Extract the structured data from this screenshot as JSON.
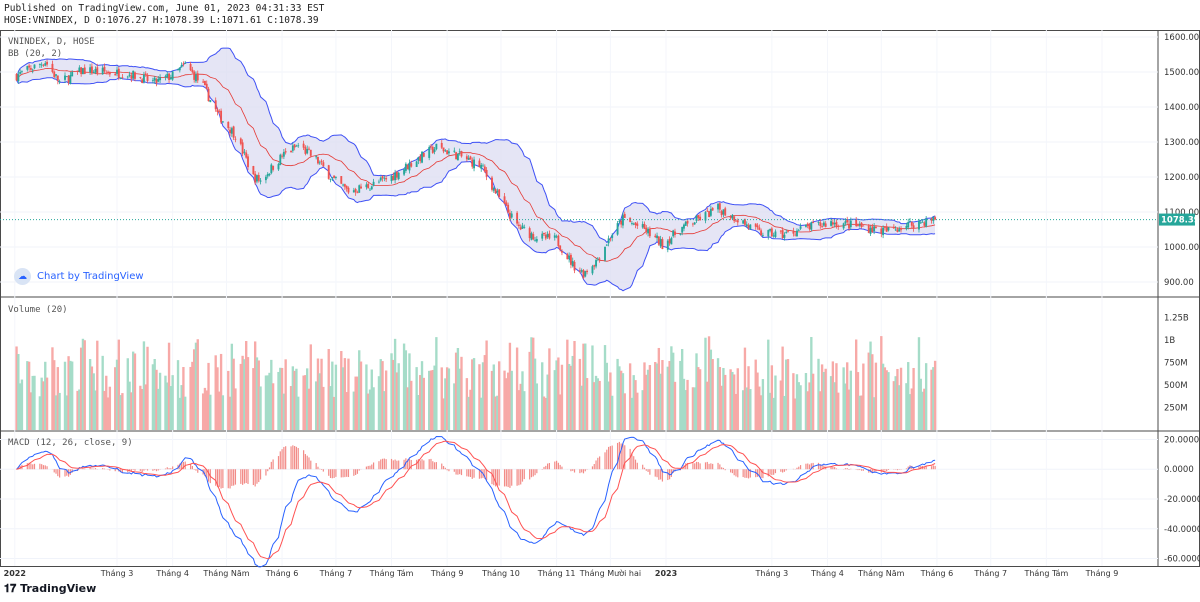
{
  "header": {
    "published": "Published on TradingView.com, June 01, 2023 04:31:33 EST",
    "ohlc": "HOSE:VNINDEX, D O:1076.27 H:1078.39 L:1071.61 C:1078.39"
  },
  "price_pane": {
    "symbol_label": "VNINDEX, D, HOSE",
    "indicator_label": "BB (20, 2)",
    "last_price": "1078.39",
    "y_ticks": [
      "1600.00",
      "1500.00",
      "1400.00",
      "1300.00",
      "1200.00",
      "1100.00",
      "1000.00",
      "900.00"
    ]
  },
  "volume_pane": {
    "label": "Volume (20)",
    "y_ticks": [
      "1.25B",
      "1B",
      "750M",
      "500M",
      "250M"
    ]
  },
  "macd_pane": {
    "label": "MACD (12, 26, close, 9)",
    "y_ticks": [
      "20.0000",
      "0.0000",
      "-20.0000",
      "-40.0000",
      "-60.0000"
    ]
  },
  "x_axis": [
    "2022",
    "Tháng 3",
    "Tháng 4",
    "Tháng Năm",
    "Tháng 6",
    "Tháng 7",
    "Tháng Tám",
    "Tháng 9",
    "Tháng 10",
    "Tháng 11",
    "Tháng Mười hai",
    "2023",
    "Tháng 3",
    "Tháng 4",
    "Tháng Năm",
    "Tháng 6",
    "Tháng 7",
    "Tháng Tám",
    "Tháng 9"
  ],
  "watermark": "Chart by TradingView",
  "footer": "TradingView",
  "colors": {
    "up": "#26a69a",
    "down": "#ef5350",
    "bb_band": "#3f51f5",
    "bb_mid": "#e53935",
    "bb_fill": "#dcdcf2",
    "macd": "#2962ff",
    "signal": "#ff5252",
    "last_price_bg": "#26a69a"
  },
  "chart_data": {
    "type": "candlestick",
    "price_range": [
      860,
      1620
    ],
    "close_path": [
      [
        "2022-01-04",
        1490
      ],
      [
        "2022-01-12",
        1510
      ],
      [
        "2022-01-20",
        1530
      ],
      [
        "2022-01-28",
        1470
      ],
      [
        "2022-02-10",
        1505
      ],
      [
        "2022-02-22",
        1500
      ],
      [
        "2022-03-08",
        1495
      ],
      [
        "2022-03-22",
        1470
      ],
      [
        "2022-04-01",
        1490
      ],
      [
        "2022-04-08",
        1520
      ],
      [
        "2022-04-18",
        1460
      ],
      [
        "2022-04-26",
        1380
      ],
      [
        "2022-05-06",
        1320
      ],
      [
        "2022-05-12",
        1250
      ],
      [
        "2022-05-16",
        1200
      ],
      [
        "2022-05-20",
        1190
      ],
      [
        "2022-06-01",
        1260
      ],
      [
        "2022-06-10",
        1290
      ],
      [
        "2022-06-20",
        1250
      ],
      [
        "2022-06-30",
        1190
      ],
      [
        "2022-07-08",
        1160
      ],
      [
        "2022-07-20",
        1175
      ],
      [
        "2022-08-01",
        1200
      ],
      [
        "2022-08-15",
        1250
      ],
      [
        "2022-08-26",
        1285
      ],
      [
        "2022-09-08",
        1260
      ],
      [
        "2022-09-20",
        1230
      ],
      [
        "2022-09-30",
        1140
      ],
      [
        "2022-10-10",
        1060
      ],
      [
        "2022-10-20",
        1030
      ],
      [
        "2022-11-01",
        1020
      ],
      [
        "2022-11-10",
        950
      ],
      [
        "2022-11-16",
        925
      ],
      [
        "2022-11-23",
        960
      ],
      [
        "2022-12-01",
        1030
      ],
      [
        "2022-12-08",
        1080
      ],
      [
        "2022-12-20",
        1050
      ],
      [
        "2022-12-30",
        1007
      ],
      [
        "2023-01-10",
        1055
      ],
      [
        "2023-01-30",
        1110
      ],
      [
        "2023-02-10",
        1080
      ],
      [
        "2023-02-22",
        1040
      ],
      [
        "2023-03-08",
        1035
      ],
      [
        "2023-03-20",
        1055
      ],
      [
        "2023-04-03",
        1070
      ],
      [
        "2023-04-18",
        1060
      ],
      [
        "2023-05-04",
        1045
      ],
      [
        "2023-05-17",
        1065
      ],
      [
        "2023-05-31",
        1078.39
      ]
    ],
    "volume_range": [
      0,
      1400000000
    ],
    "macd_range": [
      -65,
      25
    ],
    "last_close": 1078.39
  }
}
